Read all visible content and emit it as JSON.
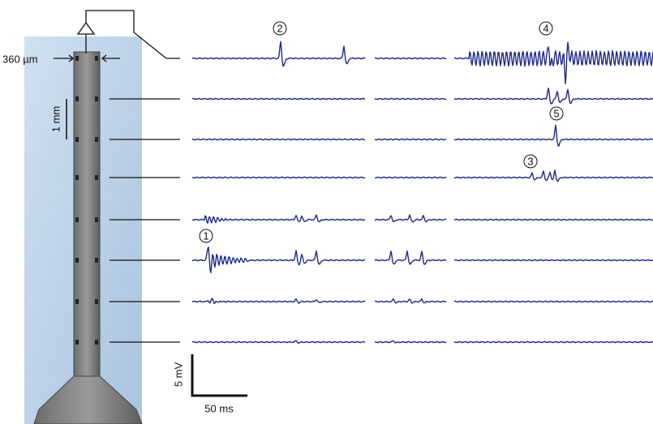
{
  "probe": {
    "width_label": "360 µm",
    "spacing_label": "1 mm"
  },
  "scale_bar": {
    "voltage_label": "5 mV",
    "time_label": "50 ms"
  },
  "markers": [
    "1",
    "2",
    "3",
    "4",
    "5"
  ]
}
